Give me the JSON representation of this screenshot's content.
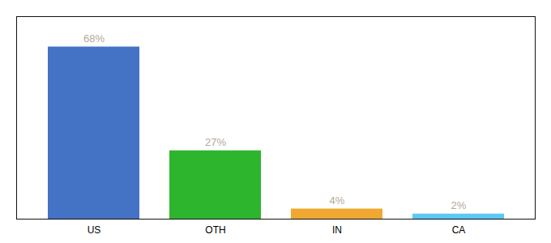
{
  "chart_data": {
    "type": "bar",
    "categories": [
      "US",
      "OTH",
      "IN",
      "CA"
    ],
    "values": [
      68,
      27,
      4,
      2
    ],
    "value_labels": [
      "68%",
      "27%",
      "4%",
      "2%"
    ],
    "colors": [
      "#4472c4",
      "#2db52d",
      "#f0a830",
      "#5bc8f5"
    ],
    "ylim": [
      0,
      80
    ],
    "data_labels": true,
    "tick_labels": "x"
  }
}
